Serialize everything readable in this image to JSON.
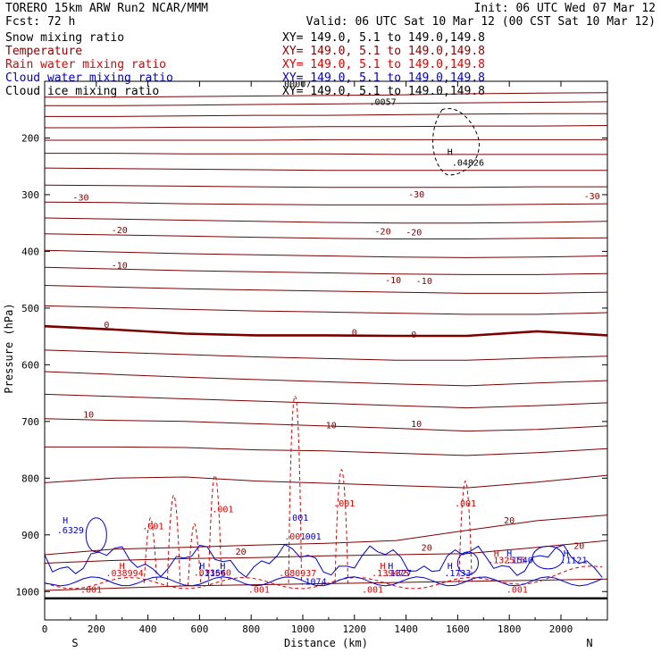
{
  "header": {
    "line1": "TORERO  15km ARW   Run2    NCAR/MMM",
    "init": "Init: 06 UTC Wed 07 Mar 12",
    "fcst": "Fcst:    72 h",
    "valid": "Valid: 06 UTC Sat 10 Mar 12 (00 CST Sat 10 Mar 12)"
  },
  "legend": [
    {
      "label": "Snow mixing ratio",
      "xy": "XY= 149.0,  5.1 to 149.0,149.8",
      "color": "#000000"
    },
    {
      "label": "Temperature",
      "xy": "XY= 149.0,  5.1 to 149.0,149.8",
      "color": "#8b0000"
    },
    {
      "label": "Rain water mixing ratio",
      "xy": "XY= 149.0,  5.1 to 149.0,149.8",
      "color": "#dd0000"
    },
    {
      "label": "Cloud water mixing ratio",
      "xy": "XY= 149.0,  5.1 to 149.0,149.8",
      "color": "#0000cc"
    },
    {
      "label": "Cloud ice mixing ratio",
      "xy": "XY= 149.0,  5.1 to 149.0,149.8",
      "color": "#000000"
    }
  ],
  "chart_data": {
    "type": "cross-section contour",
    "xlabel": "Distance (km)",
    "ylabel": "Pressure (hPa)",
    "xlim": [
      0,
      2180
    ],
    "ylim": [
      1050,
      100
    ],
    "x_ticks": [
      0,
      200,
      400,
      600,
      800,
      1000,
      1200,
      1400,
      1600,
      1800,
      2000
    ],
    "y_ticks": [
      200,
      300,
      400,
      500,
      600,
      700,
      800,
      900,
      1000
    ],
    "x_end_labels": {
      "left": "S",
      "right": "N"
    },
    "temperature_isotherms": [
      {
        "p": [
          128,
          128,
          127,
          126,
          125,
          124,
          122,
          121,
          120
        ]
      },
      {
        "p": [
          143,
          143,
          142,
          141,
          140,
          139,
          138,
          137,
          136
        ]
      },
      {
        "p": [
          162,
          162,
          161,
          160,
          160,
          159,
          158,
          157,
          157
        ]
      },
      {
        "p": [
          182,
          182,
          181,
          181,
          180,
          180,
          179,
          179,
          178
        ]
      },
      {
        "p": [
          204,
          204,
          204,
          204,
          203,
          203,
          203,
          203,
          203
        ]
      },
      {
        "p": [
          227,
          227,
          228,
          228,
          228,
          229,
          229,
          229,
          229
        ]
      },
      {
        "p": [
          253,
          254,
          255,
          256,
          257,
          257,
          257,
          257,
          257
        ]
      },
      {
        "p": [
          283,
          284,
          285,
          286,
          287,
          287,
          287,
          286,
          286
        ]
      },
      {
        "p": [
          313,
          314,
          316,
          317,
          318,
          318,
          318,
          317,
          316
        ],
        "label": "-30"
      },
      {
        "p": [
          341,
          343,
          345,
          347,
          349,
          350,
          350,
          349,
          347
        ]
      },
      {
        "p": [
          369,
          371,
          373,
          375,
          377,
          378,
          378,
          377,
          376
        ],
        "label": "-20"
      },
      {
        "p": [
          398,
          401,
          404,
          406,
          408,
          410,
          411,
          410,
          408
        ]
      },
      {
        "p": [
          428,
          431,
          434,
          436,
          438,
          440,
          441,
          441,
          439
        ],
        "label": "-10"
      },
      {
        "p": [
          460,
          463,
          466,
          468,
          470,
          472,
          474,
          474,
          472
        ]
      },
      {
        "p": [
          496,
          499,
          502,
          505,
          507,
          509,
          511,
          511,
          508
        ]
      },
      {
        "p": [
          532,
          538,
          545,
          548,
          548,
          549,
          549,
          541,
          548
        ],
        "label": "0",
        "bold": true
      },
      {
        "p": [
          574,
          578,
          582,
          586,
          589,
          592,
          592,
          588,
          585
        ]
      },
      {
        "p": [
          612,
          617,
          622,
          626,
          630,
          634,
          637,
          632,
          628
        ]
      },
      {
        "p": [
          652,
          656,
          660,
          664,
          668,
          672,
          676,
          672,
          667
        ],
        "label": "10"
      },
      {
        "p": [
          695,
          698,
          700,
          704,
          708,
          712,
          717,
          714,
          708
        ]
      },
      {
        "p": [
          745,
          745,
          746,
          750,
          752,
          756,
          760,
          755,
          748
        ]
      },
      {
        "p": [
          808,
          800,
          798,
          805,
          809,
          813,
          817,
          807,
          795
        ]
      },
      {
        "p": [
          935,
          925,
          922,
          918,
          915,
          910,
          892,
          875,
          865
        ],
        "label": "20"
      },
      {
        "p": [
          950,
          945,
          942,
          940,
          937,
          935,
          933,
          922,
          910
        ]
      },
      {
        "p": [
          998,
          994,
          990,
          988,
          986,
          984,
          982,
          980,
          978
        ]
      }
    ],
    "temperature_labels": [
      {
        "x": 140,
        "p": 310,
        "text": "-30"
      },
      {
        "x": 1440,
        "p": 305,
        "text": "-30"
      },
      {
        "x": 2120,
        "p": 308,
        "text": "-30"
      },
      {
        "x": 290,
        "p": 368,
        "text": "-20"
      },
      {
        "x": 1310,
        "p": 370,
        "text": "-20"
      },
      {
        "x": 1430,
        "p": 372,
        "text": "-20"
      },
      {
        "x": 290,
        "p": 430,
        "text": "-10"
      },
      {
        "x": 1350,
        "p": 456,
        "text": "-10"
      },
      {
        "x": 1470,
        "p": 458,
        "text": "-10"
      },
      {
        "x": 240,
        "p": 535,
        "text": "0"
      },
      {
        "x": 1200,
        "p": 548,
        "text": "0"
      },
      {
        "x": 1430,
        "p": 552,
        "text": "0"
      },
      {
        "x": 170,
        "p": 693,
        "text": "10"
      },
      {
        "x": 1110,
        "p": 712,
        "text": "10"
      },
      {
        "x": 1440,
        "p": 710,
        "text": "10"
      },
      {
        "x": 760,
        "p": 935,
        "text": "20"
      },
      {
        "x": 1480,
        "p": 928,
        "text": "20"
      },
      {
        "x": 1800,
        "p": 880,
        "text": "20"
      },
      {
        "x": 2070,
        "p": 925,
        "text": "20"
      }
    ],
    "snow_labels": [
      {
        "x": 1310,
        "p": 142,
        "text": ".0057"
      },
      {
        "x": 1640,
        "p": 249,
        "text": ".04826"
      },
      {
        "x": 1570,
        "p": 230,
        "text": "H"
      },
      {
        "x": 980,
        "p": 110,
        "text": "00007"
      }
    ],
    "rain_labels": [
      {
        "x": 690,
        "p": 860,
        "text": ".001"
      },
      {
        "x": 1160,
        "p": 850,
        "text": ".001"
      },
      {
        "x": 1630,
        "p": 850,
        "text": ".001"
      },
      {
        "x": 420,
        "p": 890,
        "text": ".001"
      },
      {
        "x": 970,
        "p": 908,
        "text": ".001"
      },
      {
        "x": 300,
        "p": 960,
        "text": "H"
      },
      {
        "x": 310,
        "p": 973,
        "text": ".038994"
      },
      {
        "x": 650,
        "p": 972,
        "text": ".033640"
      },
      {
        "x": 980,
        "p": 973,
        "text": ".080937"
      },
      {
        "x": 1310,
        "p": 960,
        "text": "H"
      },
      {
        "x": 1340,
        "p": 973,
        "text": ".139475"
      },
      {
        "x": 1750,
        "p": 938,
        "text": "H"
      },
      {
        "x": 1790,
        "p": 950,
        "text": ".132515"
      },
      {
        "x": 830,
        "p": 1002,
        "text": ".001"
      },
      {
        "x": 1830,
        "p": 1002,
        "text": ".001"
      },
      {
        "x": 180,
        "p": 1002,
        "text": ".001"
      },
      {
        "x": 1270,
        "p": 1002,
        "text": ".001"
      }
    ],
    "cloud_water_labels": [
      {
        "x": 80,
        "p": 880,
        "text": "H"
      },
      {
        "x": 100,
        "p": 897,
        "text": ".6329"
      },
      {
        "x": 980,
        "p": 875,
        "text": ".001"
      },
      {
        "x": 1030,
        "p": 908,
        "text": ".001"
      },
      {
        "x": 610,
        "p": 960,
        "text": "H"
      },
      {
        "x": 650,
        "p": 973,
        "text": ".1156"
      },
      {
        "x": 690,
        "p": 960,
        "text": "H"
      },
      {
        "x": 1040,
        "p": 988,
        "text": ".1074"
      },
      {
        "x": 1340,
        "p": 960,
        "text": "H"
      },
      {
        "x": 1370,
        "p": 973,
        "text": ".1327"
      },
      {
        "x": 1570,
        "p": 960,
        "text": "H"
      },
      {
        "x": 1600,
        "p": 973,
        "text": ".1733"
      },
      {
        "x": 1800,
        "p": 938,
        "text": "H"
      },
      {
        "x": 1840,
        "p": 950,
        "text": ".1540"
      },
      {
        "x": 2020,
        "p": 938,
        "text": "H"
      },
      {
        "x": 2050,
        "p": 950,
        "text": ".1121"
      }
    ]
  }
}
